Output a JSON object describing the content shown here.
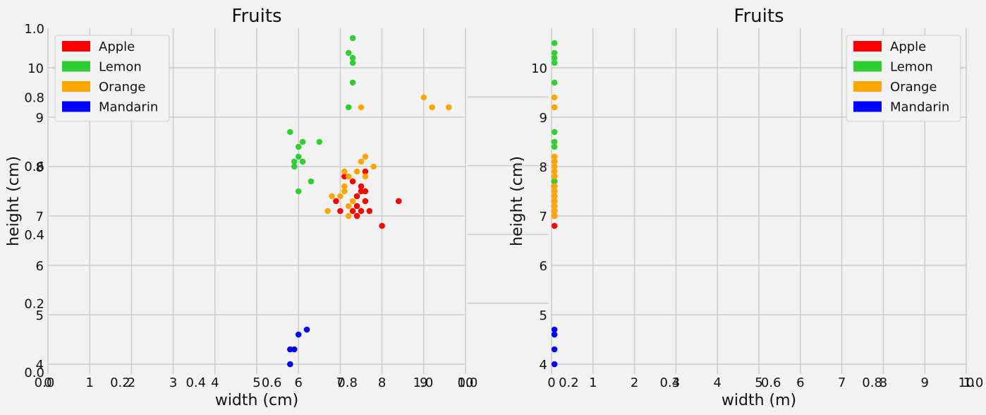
{
  "colors": {
    "Apple": "#ff0000",
    "Lemon": "#32cd32",
    "Orange": "#ffa500",
    "Mandarin": "#0000ff",
    "background": "#f2f2f2",
    "grid": "#cbcbcb"
  },
  "chart_data": [
    {
      "type": "scatter",
      "title": "Fruits",
      "xlabel": "width (cm)",
      "ylabel": "height (cm)",
      "xlim": [
        0,
        10
      ],
      "ylim": [
        3.8,
        10.8
      ],
      "xticks": [
        0,
        1,
        2,
        3,
        4,
        5,
        6,
        7,
        8,
        9,
        10
      ],
      "yticks": [
        4,
        5,
        6,
        7,
        8,
        9,
        10
      ],
      "grid": true,
      "legend_position": "top-left",
      "series": [
        {
          "name": "Apple",
          "points": [
            [
              7.1,
              7.8
            ],
            [
              7.3,
              7.7
            ],
            [
              7.6,
              7.9
            ],
            [
              7.5,
              7.6
            ],
            [
              7.4,
              7.4
            ],
            [
              7.6,
              7.5
            ],
            [
              6.9,
              7.3
            ],
            [
              7.0,
              7.1
            ],
            [
              7.3,
              7.1
            ],
            [
              7.4,
              7.2
            ],
            [
              7.5,
              7.1
            ],
            [
              7.6,
              7.3
            ],
            [
              7.7,
              7.1
            ],
            [
              7.4,
              7.0
            ],
            [
              8.0,
              6.8
            ],
            [
              8.4,
              7.3
            ],
            [
              7.5,
              7.5
            ]
          ]
        },
        {
          "name": "Lemon",
          "points": [
            [
              7.3,
              10.6
            ],
            [
              7.2,
              10.3
            ],
            [
              7.3,
              10.2
            ],
            [
              7.3,
              10.1
            ],
            [
              7.3,
              9.7
            ],
            [
              7.2,
              9.2
            ],
            [
              5.8,
              8.7
            ],
            [
              6.0,
              8.4
            ],
            [
              6.1,
              8.5
            ],
            [
              6.5,
              8.5
            ],
            [
              5.9,
              8.1
            ],
            [
              6.0,
              8.2
            ],
            [
              6.1,
              8.1
            ],
            [
              5.9,
              8.0
            ],
            [
              6.3,
              7.7
            ],
            [
              6.0,
              7.5
            ]
          ]
        },
        {
          "name": "Orange",
          "points": [
            [
              9.0,
              9.4
            ],
            [
              9.2,
              9.2
            ],
            [
              9.6,
              9.2
            ],
            [
              7.5,
              9.2
            ],
            [
              7.6,
              8.2
            ],
            [
              7.5,
              8.1
            ],
            [
              7.8,
              8.0
            ],
            [
              7.1,
              7.9
            ],
            [
              7.2,
              7.8
            ],
            [
              7.6,
              7.8
            ],
            [
              7.1,
              7.6
            ],
            [
              7.1,
              7.5
            ],
            [
              6.8,
              7.4
            ],
            [
              7.0,
              7.4
            ],
            [
              7.3,
              7.3
            ],
            [
              7.2,
              7.2
            ],
            [
              6.7,
              7.1
            ],
            [
              7.2,
              7.0
            ],
            [
              7.4,
              7.9
            ]
          ]
        },
        {
          "name": "Mandarin",
          "points": [
            [
              6.2,
              4.7
            ],
            [
              6.0,
              4.6
            ],
            [
              5.8,
              4.3
            ],
            [
              5.9,
              4.3
            ],
            [
              5.8,
              4.0
            ]
          ]
        }
      ],
      "overlay_axis": {
        "xlim": [
          0,
          1
        ],
        "ylim": [
          0,
          1
        ],
        "xticks": [
          "0.0",
          "0.2",
          "0.4",
          "0.6",
          "0.8",
          "1.0"
        ],
        "yticks": [
          "0.0",
          "0.2",
          "0.4",
          "0.6",
          "0.8",
          "1.0"
        ]
      }
    },
    {
      "type": "scatter",
      "title": "Fruits",
      "xlabel": "width (m)",
      "ylabel": "height (cm)",
      "xlim": [
        0,
        10
      ],
      "ylim": [
        3.8,
        10.8
      ],
      "xticks": [
        0,
        1,
        2,
        3,
        4,
        5,
        6,
        7,
        8,
        9,
        10
      ],
      "yticks": [
        4,
        5,
        6,
        7,
        8,
        9,
        10
      ],
      "grid": true,
      "legend_position": "top-right",
      "series": [
        {
          "name": "Apple",
          "points": [
            [
              0.07,
              7.8
            ],
            [
              0.07,
              7.7
            ],
            [
              0.07,
              7.6
            ],
            [
              0.07,
              7.5
            ],
            [
              0.07,
              7.4
            ],
            [
              0.07,
              7.3
            ],
            [
              0.07,
              7.2
            ],
            [
              0.07,
              7.1
            ],
            [
              0.07,
              7.0
            ],
            [
              0.07,
              6.8
            ]
          ]
        },
        {
          "name": "Lemon",
          "points": [
            [
              0.07,
              10.5
            ],
            [
              0.07,
              10.3
            ],
            [
              0.07,
              10.2
            ],
            [
              0.07,
              10.1
            ],
            [
              0.07,
              9.7
            ],
            [
              0.07,
              8.7
            ],
            [
              0.07,
              8.5
            ],
            [
              0.07,
              8.4
            ],
            [
              0.07,
              8.2
            ],
            [
              0.07,
              8.1
            ],
            [
              0.07,
              7.7
            ],
            [
              0.07,
              7.5
            ]
          ]
        },
        {
          "name": "Orange",
          "points": [
            [
              0.07,
              9.4
            ],
            [
              0.07,
              9.2
            ],
            [
              0.07,
              8.2
            ],
            [
              0.07,
              8.1
            ],
            [
              0.07,
              8.0
            ],
            [
              0.07,
              7.9
            ],
            [
              0.07,
              7.8
            ],
            [
              0.07,
              7.6
            ],
            [
              0.07,
              7.5
            ],
            [
              0.07,
              7.4
            ],
            [
              0.07,
              7.3
            ],
            [
              0.07,
              7.2
            ],
            [
              0.07,
              7.1
            ],
            [
              0.07,
              7.0
            ]
          ]
        },
        {
          "name": "Mandarin",
          "points": [
            [
              0.07,
              4.7
            ],
            [
              0.07,
              4.6
            ],
            [
              0.07,
              4.3
            ],
            [
              0.07,
              4.0
            ]
          ]
        }
      ],
      "overlay_axis": {
        "xlim": [
          0,
          1
        ],
        "ylim": [
          0,
          1
        ],
        "xticks": [
          "0.0",
          "0.2",
          "0.4",
          "0.6",
          "0.8",
          "1.0"
        ],
        "yticks": []
      }
    }
  ]
}
